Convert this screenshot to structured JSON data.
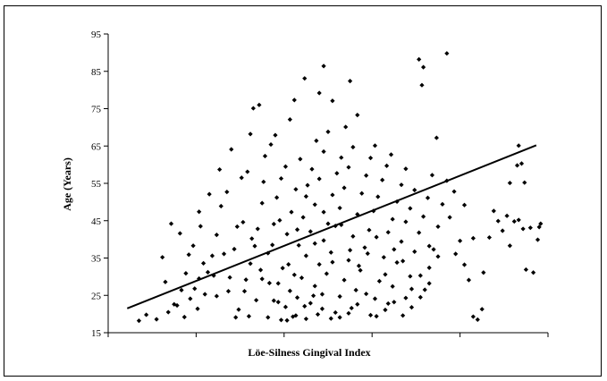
{
  "chart_data": {
    "type": "scatter",
    "title": "",
    "xlabel": "Löe-Silness Gingival Index",
    "ylabel": "Age (Years)",
    "ylim": [
      15,
      95
    ],
    "yticks": [
      "15",
      "25",
      "35",
      "45",
      "55",
      "65",
      "75",
      "85",
      "95"
    ],
    "xlim": [
      0,
      3
    ],
    "xticks_shown_without_labels": true,
    "grid": false,
    "legend": "none",
    "marker_color": "#000000",
    "marker_shape": "diamond",
    "trendline": {
      "x": [
        0.13,
        2.92
      ],
      "y": [
        21.5,
        65.2
      ]
    },
    "series": [
      {
        "points": [
          [
            0.21,
            18.2
          ],
          [
            0.26,
            19.8
          ],
          [
            0.33,
            18.6
          ],
          [
            0.41,
            20.5
          ],
          [
            0.47,
            22.3
          ],
          [
            0.52,
            19.2
          ],
          [
            0.56,
            24.1
          ],
          [
            0.59,
            26.8
          ],
          [
            0.62,
            29.5
          ],
          [
            0.65,
            33.6
          ],
          [
            0.68,
            31.2
          ],
          [
            0.61,
            21.4
          ],
          [
            0.66,
            25.3
          ],
          [
            0.72,
            30.3
          ],
          [
            0.74,
            41.2
          ],
          [
            0.77,
            48.9
          ],
          [
            0.74,
            24.8
          ],
          [
            0.79,
            36.1
          ],
          [
            0.81,
            52.7
          ],
          [
            0.83,
            29.8
          ],
          [
            0.86,
            37.4
          ],
          [
            0.88,
            43.4
          ],
          [
            0.91,
            56.5
          ],
          [
            0.95,
            58.1
          ],
          [
            0.97,
            68.2
          ],
          [
            0.99,
            75.1
          ],
          [
            1.03,
            76.0
          ],
          [
            0.89,
            21.2
          ],
          [
            0.93,
            26.1
          ],
          [
            0.97,
            33.5
          ],
          [
            1.02,
            42.8
          ],
          [
            1.05,
            49.7
          ],
          [
            1.07,
            62.3
          ],
          [
            1.11,
            65.4
          ],
          [
            1.14,
            67.9
          ],
          [
            0.96,
            19.4
          ],
          [
            1.01,
            23.7
          ],
          [
            1.05,
            29.4
          ],
          [
            1.09,
            36.3
          ],
          [
            1.13,
            44.1
          ],
          [
            1.15,
            51.2
          ],
          [
            1.18,
            56.3
          ],
          [
            1.21,
            59.5
          ],
          [
            1.24,
            72.1
          ],
          [
            1.27,
            77.3
          ],
          [
            1.09,
            19.1
          ],
          [
            1.13,
            23.6
          ],
          [
            1.16,
            28.2
          ],
          [
            1.19,
            32.3
          ],
          [
            1.22,
            41.4
          ],
          [
            1.25,
            47.3
          ],
          [
            1.28,
            53.4
          ],
          [
            1.31,
            61.5
          ],
          [
            1.34,
            83.1
          ],
          [
            1.18,
            18.4
          ],
          [
            1.21,
            21.9
          ],
          [
            1.24,
            26.2
          ],
          [
            1.27,
            30.5
          ],
          [
            1.3,
            38.4
          ],
          [
            1.33,
            45.9
          ],
          [
            1.36,
            54.5
          ],
          [
            1.39,
            58.8
          ],
          [
            1.42,
            66.4
          ],
          [
            1.44,
            79.2
          ],
          [
            1.47,
            86.4
          ],
          [
            1.26,
            19.3
          ],
          [
            1.29,
            24.4
          ],
          [
            1.32,
            29.7
          ],
          [
            1.35,
            35.6
          ],
          [
            1.38,
            42.1
          ],
          [
            1.41,
            49.3
          ],
          [
            1.44,
            56.2
          ],
          [
            1.47,
            63.5
          ],
          [
            1.5,
            68.8
          ],
          [
            1.53,
            77.1
          ],
          [
            1.35,
            18.7
          ],
          [
            1.38,
            22.9
          ],
          [
            1.41,
            27.5
          ],
          [
            1.44,
            33.3
          ],
          [
            1.47,
            39.7
          ],
          [
            1.5,
            44.2
          ],
          [
            1.53,
            51.9
          ],
          [
            1.56,
            57.7
          ],
          [
            1.59,
            61.9
          ],
          [
            1.62,
            70.1
          ],
          [
            1.65,
            82.4
          ],
          [
            1.43,
            19.9
          ],
          [
            1.46,
            25.3
          ],
          [
            1.49,
            30.8
          ],
          [
            1.52,
            36.5
          ],
          [
            1.55,
            43.6
          ],
          [
            1.58,
            48.4
          ],
          [
            1.61,
            53.8
          ],
          [
            1.64,
            59.3
          ],
          [
            1.67,
            64.7
          ],
          [
            1.7,
            73.3
          ],
          [
            1.55,
            20.4
          ],
          [
            1.58,
            24.7
          ],
          [
            1.61,
            29.1
          ],
          [
            1.64,
            34.4
          ],
          [
            1.67,
            40.8
          ],
          [
            1.7,
            46.7
          ],
          [
            1.73,
            52.3
          ],
          [
            1.76,
            57.1
          ],
          [
            1.79,
            61.8
          ],
          [
            1.82,
            65.1
          ],
          [
            1.66,
            21.6
          ],
          [
            1.69,
            26.4
          ],
          [
            1.72,
            31.7
          ],
          [
            1.75,
            37.8
          ],
          [
            1.78,
            42.5
          ],
          [
            1.81,
            47.6
          ],
          [
            1.84,
            51.4
          ],
          [
            1.87,
            55.9
          ],
          [
            1.9,
            59.7
          ],
          [
            1.93,
            62.7
          ],
          [
            1.79,
            19.7
          ],
          [
            1.82,
            24.1
          ],
          [
            1.85,
            28.8
          ],
          [
            1.88,
            35.2
          ],
          [
            1.91,
            41.9
          ],
          [
            1.94,
            45.4
          ],
          [
            1.97,
            50.1
          ],
          [
            2.0,
            54.6
          ],
          [
            2.03,
            58.9
          ],
          [
            1.91,
            22.8
          ],
          [
            1.94,
            27.4
          ],
          [
            1.97,
            33.8
          ],
          [
            2.0,
            39.4
          ],
          [
            2.03,
            44.7
          ],
          [
            2.06,
            48.3
          ],
          [
            2.09,
            53.2
          ],
          [
            2.12,
            88.2
          ],
          [
            2.14,
            81.3
          ],
          [
            2.15,
            86.1
          ],
          [
            2.03,
            24.3
          ],
          [
            2.06,
            30.1
          ],
          [
            2.09,
            36.7
          ],
          [
            2.12,
            41.8
          ],
          [
            2.15,
            46.1
          ],
          [
            2.18,
            51.1
          ],
          [
            2.21,
            57.2
          ],
          [
            2.24,
            67.2
          ],
          [
            2.16,
            26.5
          ],
          [
            2.19,
            32.4
          ],
          [
            2.22,
            37.3
          ],
          [
            2.25,
            43.4
          ],
          [
            2.28,
            49.4
          ],
          [
            2.31,
            89.8
          ],
          [
            2.33,
            45.9
          ],
          [
            2.36,
            52.8
          ],
          [
            2.4,
            39.6
          ],
          [
            2.43,
            33.2
          ],
          [
            2.46,
            29.1
          ],
          [
            2.49,
            19.3
          ],
          [
            2.52,
            18.5
          ],
          [
            2.55,
            21.3
          ],
          [
            2.56,
            31.1
          ],
          [
            2.6,
            40.5
          ],
          [
            2.63,
            47.6
          ],
          [
            2.66,
            44.9
          ],
          [
            2.69,
            42.3
          ],
          [
            2.72,
            46.3
          ],
          [
            2.74,
            55.1
          ],
          [
            2.77,
            44.8
          ],
          [
            2.79,
            59.8
          ],
          [
            2.8,
            45.2
          ],
          [
            2.8,
            65.1
          ],
          [
            2.82,
            60.3
          ],
          [
            2.83,
            42.8
          ],
          [
            2.84,
            55.2
          ],
          [
            2.85,
            31.9
          ],
          [
            2.74,
            38.3
          ],
          [
            2.88,
            43.1
          ],
          [
            2.9,
            31.1
          ],
          [
            2.93,
            39.9
          ],
          [
            2.94,
            43.3
          ],
          [
            2.95,
            44.2
          ],
          [
            0.37,
            35.2
          ],
          [
            0.39,
            28.6
          ],
          [
            0.45,
            22.6
          ],
          [
            0.5,
            26.4
          ],
          [
            0.53,
            30.9
          ],
          [
            0.58,
            38.3
          ],
          [
            0.63,
            43.5
          ],
          [
            0.69,
            52.1
          ],
          [
            0.76,
            58.7
          ],
          [
            0.84,
            64.1
          ],
          [
            0.92,
            44.6
          ],
          [
            0.98,
            40.2
          ],
          [
            1.04,
            31.8
          ],
          [
            1.1,
            28.3
          ],
          [
            1.16,
            23.2
          ],
          [
            1.22,
            18.3
          ],
          [
            1.28,
            19.6
          ],
          [
            1.34,
            22.1
          ],
          [
            1.4,
            24.9
          ],
          [
            1.46,
            21.4
          ],
          [
            1.52,
            18.8
          ],
          [
            1.58,
            19.1
          ],
          [
            1.64,
            20.2
          ],
          [
            1.7,
            22.6
          ],
          [
            1.76,
            25.4
          ],
          [
            1.83,
            19.4
          ],
          [
            1.89,
            21.1
          ],
          [
            1.95,
            23.2
          ],
          [
            2.01,
            19.6
          ],
          [
            2.07,
            21.8
          ],
          [
            2.13,
            24.5
          ],
          [
            2.19,
            38.2
          ],
          [
            2.25,
            35.4
          ],
          [
            2.31,
            55.7
          ],
          [
            2.37,
            36.1
          ],
          [
            2.43,
            49.2
          ],
          [
            2.49,
            40.3
          ],
          [
            0.43,
            44.2
          ],
          [
            0.49,
            41.6
          ],
          [
            0.55,
            35.9
          ],
          [
            0.62,
            47.4
          ],
          [
            0.71,
            35.6
          ],
          [
            0.82,
            26.1
          ],
          [
            0.87,
            19.1
          ],
          [
            0.94,
            29.2
          ],
          [
            1.0,
            38.2
          ],
          [
            1.06,
            55.4
          ],
          [
            1.12,
            38.5
          ],
          [
            1.17,
            45.1
          ],
          [
            1.23,
            33.3
          ],
          [
            1.29,
            42.6
          ],
          [
            1.35,
            51.5
          ],
          [
            1.41,
            38.9
          ],
          [
            1.47,
            47.3
          ],
          [
            1.53,
            33.9
          ],
          [
            1.59,
            43.9
          ],
          [
            1.65,
            37.1
          ],
          [
            1.71,
            32.9
          ],
          [
            1.77,
            36.2
          ],
          [
            1.83,
            40.6
          ],
          [
            1.89,
            30.6
          ],
          [
            1.95,
            37.3
          ],
          [
            2.01,
            34.2
          ],
          [
            2.07,
            26.7
          ],
          [
            2.13,
            30.3
          ],
          [
            2.19,
            28.2
          ]
        ]
      }
    ]
  }
}
